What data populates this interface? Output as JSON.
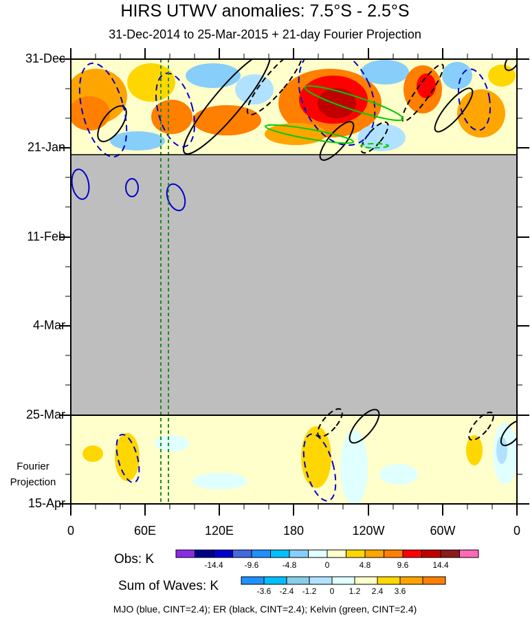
{
  "chart_data": {
    "type": "heatmap",
    "title": "HIRS UTWV anomalies: 7.5°S - 2.5°S",
    "subtitle": "31-Dec-2014 to 25-Mar-2015 + 21-day Fourier Projection",
    "x_ticks": [
      "0",
      "60E",
      "120E",
      "180",
      "120W",
      "60W",
      "0"
    ],
    "y_ticks": [
      "31-Dec",
      "21-Jan",
      "11-Feb",
      "4-Mar",
      "25-Mar",
      "15-Apr"
    ],
    "fourier_label": [
      "Fourier",
      "Projection"
    ],
    "missing_data_period": [
      "21-Jan",
      "25-Mar"
    ],
    "reference_longitudes_deg": [
      73,
      80
    ],
    "obs_colorbar": {
      "title": "Obs: K",
      "labels": [
        "-14.4",
        "-9.6",
        "-4.8",
        "0",
        "4.8",
        "9.6",
        "14.4"
      ],
      "colors": [
        "#8a2be2",
        "#00008b",
        "#0000cd",
        "#4169e1",
        "#1e90ff",
        "#00bfff",
        "#87cefa",
        "#e0ffff",
        "#ffffcc",
        "#ffd700",
        "#ffa500",
        "#ff7f00",
        "#ff0000",
        "#c00000",
        "#8b1a1a",
        "#ff69b4"
      ]
    },
    "waves_colorbar": {
      "title": "Sum of Waves: K",
      "labels": [
        "-3.6",
        "-2.4",
        "-1.2",
        "0",
        "1.2",
        "2.4",
        "3.6"
      ],
      "colors": [
        "#1e90ff",
        "#00bfff",
        "#87ceeb",
        "#b0e2ff",
        "#e0ffff",
        "#ffffcc",
        "#ffd700",
        "#ffa500",
        "#ff7f00"
      ]
    },
    "contour_legend": "MJO (blue, CINT=2.4); ER (black, CINT=2.4); Kelvin (green, CINT=2.4)",
    "colors": {
      "mjo": "#0000cd",
      "er": "#000000",
      "kelvin": "#00cc00",
      "missing": "#bebebe",
      "ref_line": "#228b22"
    }
  }
}
